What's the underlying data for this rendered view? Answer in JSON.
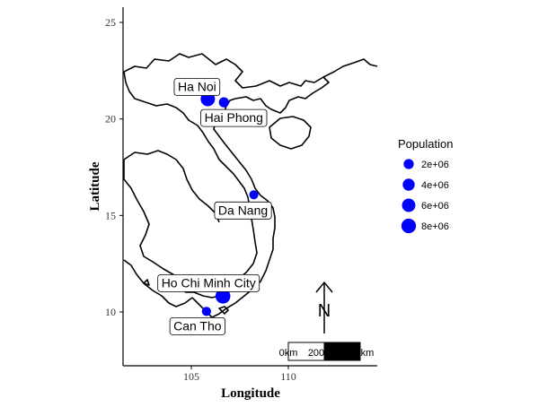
{
  "chart_data": {
    "type": "map",
    "xlabel": "Longitude",
    "ylabel": "Latitude",
    "xlim": [
      101.5,
      114.5
    ],
    "ylim": [
      7.2,
      26.1
    ],
    "x_ticks": [
      105,
      110
    ],
    "y_ticks": [
      10,
      15,
      20,
      25
    ],
    "grid": false,
    "points": [
      {
        "name": "Ha Noi",
        "lon": 105.85,
        "lat": 21.03,
        "population": 7500000
      },
      {
        "name": "Hai Phong",
        "lon": 106.68,
        "lat": 20.86,
        "population": 2000000
      },
      {
        "name": "Da Nang",
        "lon": 108.22,
        "lat": 16.07,
        "population": 1100000
      },
      {
        "name": "Ho Chi Minh City",
        "lon": 106.63,
        "lat": 10.82,
        "population": 8400000
      },
      {
        "name": "Can Tho",
        "lon": 105.78,
        "lat": 10.03,
        "population": 1200000
      }
    ],
    "point_color": "#0000ff",
    "legend": {
      "title": "Population",
      "placement": "right",
      "entries": [
        {
          "label": "2e+06",
          "value": 2000000
        },
        {
          "label": "4e+06",
          "value": 4000000
        },
        {
          "label": "6e+06",
          "value": 6000000
        },
        {
          "label": "8e+06",
          "value": 8000000
        }
      ]
    },
    "scale_bar": {
      "labels": [
        "0km",
        "200",
        "km"
      ]
    },
    "north_arrow": {
      "label": "N"
    }
  }
}
